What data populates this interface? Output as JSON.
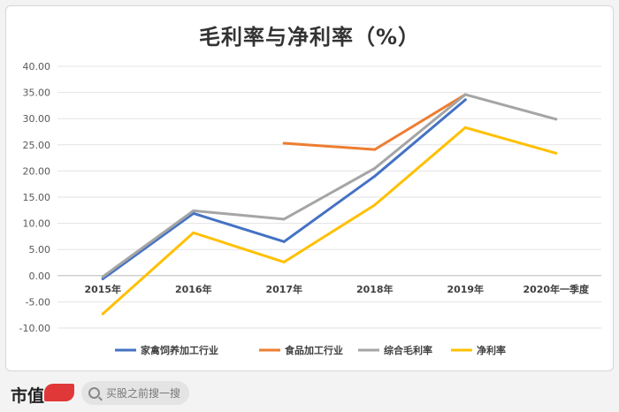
{
  "title": "毛利率与净利率（%）",
  "brand": {
    "name": "市值",
    "search_placeholder": "买股之前搜一搜"
  },
  "colors": {
    "家禽饲养加工行业": "#4472c4",
    "食品加工行业": "#ed7d31",
    "综合毛利率": "#a5a5a5",
    "净利率": "#ffc000"
  },
  "chart_data": {
    "type": "line",
    "title": "毛利率与净利率（%）",
    "xlabel": "",
    "ylabel": "",
    "ylim": [
      -10,
      40
    ],
    "yticks": [
      "40.00",
      "35.00",
      "30.00",
      "25.00",
      "20.00",
      "15.00",
      "10.00",
      "5.00",
      "0.00",
      "-5.00",
      "-10.00"
    ],
    "categories": [
      "2015年",
      "2016年",
      "2017年",
      "2018年",
      "2019年",
      "2020年一季度"
    ],
    "grid": true,
    "legend_position": "bottom",
    "series": [
      {
        "name": "家禽饲养加工行业",
        "values": [
          -0.6,
          11.9,
          6.5,
          19.0,
          33.6,
          null
        ]
      },
      {
        "name": "食品加工行业",
        "values": [
          null,
          null,
          25.3,
          24.1,
          34.6,
          null
        ]
      },
      {
        "name": "综合毛利率",
        "values": [
          -0.2,
          12.4,
          10.8,
          20.5,
          34.6,
          29.9
        ]
      },
      {
        "name": "净利率",
        "values": [
          -7.3,
          8.2,
          2.6,
          13.5,
          28.3,
          23.4
        ]
      }
    ]
  }
}
